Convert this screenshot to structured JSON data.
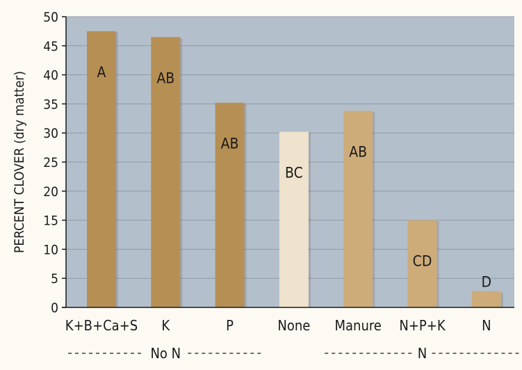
{
  "chart_data": {
    "type": "bar",
    "ylabel": "PERCENT CLOVER (dry matter)",
    "ylim": [
      0,
      50
    ],
    "yticks": [
      0,
      5,
      10,
      15,
      20,
      25,
      30,
      35,
      40,
      45,
      50
    ],
    "grid": "horizontal",
    "categories": [
      "K+B+Ca+S",
      "K",
      "P",
      "None",
      "Manure",
      "N+P+K",
      "N"
    ],
    "values": [
      47.5,
      46.5,
      35.2,
      30.2,
      33.8,
      15.0,
      2.8
    ],
    "bar_labels": [
      "A",
      "AB",
      "AB",
      "BC",
      "AB",
      "CD",
      "D"
    ],
    "groups": [
      {
        "label": "No N",
        "categories": [
          "K+B+Ca+S",
          "K",
          "P"
        ]
      },
      {
        "label": "N",
        "categories": [
          "Manure",
          "N+P+K",
          "N"
        ]
      }
    ]
  },
  "colors": {
    "plot_background": "#b4bfcc",
    "grid": "#8f99a6",
    "bar_dark": "#b58f53",
    "bar_light": "#efe3cd",
    "bar_mid": "#cdac79",
    "bar_categories_color": [
      "bar_dark",
      "bar_dark",
      "bar_dark",
      "bar_light",
      "bar_mid",
      "bar_mid",
      "bar_mid"
    ]
  }
}
